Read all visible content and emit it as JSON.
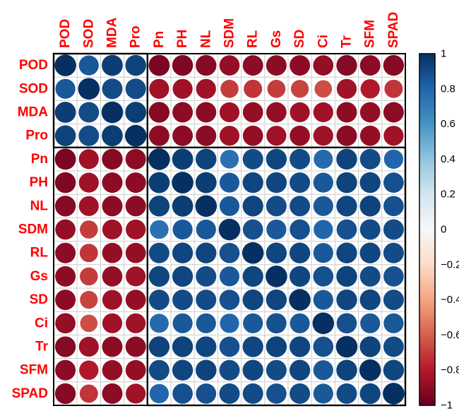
{
  "chart_data": {
    "type": "heatmap",
    "subtype": "correlation-matrix-circles",
    "title": "",
    "variables": [
      "POD",
      "SOD",
      "MDA",
      "Pro",
      "Pn",
      "PH",
      "NL",
      "SDM",
      "RL",
      "Gs",
      "SD",
      "Ci",
      "Tr",
      "SFM",
      "SPAD"
    ],
    "matrix": [
      [
        1.0,
        0.85,
        0.95,
        0.93,
        -0.95,
        -0.93,
        -0.92,
        -0.88,
        -0.9,
        -0.9,
        -0.9,
        -0.88,
        -0.92,
        -0.9,
        -0.92
      ],
      [
        0.85,
        1.0,
        0.9,
        0.9,
        -0.85,
        -0.85,
        -0.85,
        -0.7,
        -0.72,
        -0.7,
        -0.68,
        -0.65,
        -0.85,
        -0.8,
        -0.72
      ],
      [
        0.95,
        0.9,
        1.0,
        0.95,
        -0.92,
        -0.9,
        -0.9,
        -0.85,
        -0.88,
        -0.88,
        -0.85,
        -0.85,
        -0.9,
        -0.88,
        -0.9
      ],
      [
        0.93,
        0.9,
        0.95,
        1.0,
        -0.9,
        -0.9,
        -0.9,
        -0.85,
        -0.88,
        -0.85,
        -0.88,
        -0.85,
        -0.9,
        -0.88,
        -0.85
      ],
      [
        -0.95,
        -0.85,
        -0.92,
        -0.9,
        1.0,
        0.95,
        0.93,
        0.75,
        0.9,
        0.92,
        0.9,
        0.78,
        0.93,
        0.9,
        0.8
      ],
      [
        -0.93,
        -0.85,
        -0.9,
        -0.9,
        0.95,
        1.0,
        0.95,
        0.85,
        0.92,
        0.92,
        0.9,
        0.85,
        0.93,
        0.92,
        0.88
      ],
      [
        -0.92,
        -0.85,
        -0.9,
        -0.9,
        0.93,
        0.95,
        1.0,
        0.85,
        0.92,
        0.9,
        0.9,
        0.85,
        0.92,
        0.93,
        0.88
      ],
      [
        -0.88,
        -0.7,
        -0.85,
        -0.85,
        0.75,
        0.85,
        0.85,
        1.0,
        0.88,
        0.85,
        0.88,
        0.8,
        0.88,
        0.9,
        0.9
      ],
      [
        -0.9,
        -0.72,
        -0.88,
        -0.88,
        0.9,
        0.92,
        0.92,
        0.88,
        1.0,
        0.92,
        0.92,
        0.85,
        0.92,
        0.92,
        0.9
      ],
      [
        -0.9,
        -0.7,
        -0.88,
        -0.85,
        0.92,
        0.92,
        0.9,
        0.85,
        0.92,
        1.0,
        0.92,
        0.88,
        0.93,
        0.9,
        0.88
      ],
      [
        -0.9,
        -0.68,
        -0.85,
        -0.88,
        0.9,
        0.9,
        0.9,
        0.88,
        0.92,
        0.92,
        1.0,
        0.85,
        0.92,
        0.92,
        0.9
      ],
      [
        -0.88,
        -0.65,
        -0.85,
        -0.85,
        0.78,
        0.85,
        0.85,
        0.8,
        0.85,
        0.88,
        0.85,
        1.0,
        0.88,
        0.85,
        0.85
      ],
      [
        -0.92,
        -0.85,
        -0.9,
        -0.9,
        0.93,
        0.93,
        0.92,
        0.88,
        0.92,
        0.93,
        0.92,
        0.88,
        1.0,
        0.93,
        0.9
      ],
      [
        -0.9,
        -0.8,
        -0.88,
        -0.88,
        0.9,
        0.92,
        0.93,
        0.9,
        0.92,
        0.9,
        0.92,
        0.85,
        0.93,
        1.0,
        0.92
      ],
      [
        -0.92,
        -0.72,
        -0.9,
        -0.85,
        0.8,
        0.88,
        0.88,
        0.9,
        0.9,
        0.88,
        0.9,
        0.85,
        0.9,
        0.92,
        1.0
      ]
    ],
    "value_range": [
      -1,
      1
    ],
    "palette_blue_to_red": [
      "#053061",
      "#2166AC",
      "#4393C3",
      "#92C5DE",
      "#D1E5F0",
      "#F7F7F7",
      "#FDDBC7",
      "#F4A582",
      "#D6604D",
      "#B2182B",
      "#67001F"
    ],
    "label_color": "#ff0000",
    "grid_color": "#cccccc",
    "colorbar": {
      "position": "right",
      "max_label_top": "1",
      "min_label_bottom": "-1",
      "ticks": [
        1,
        0.8,
        0.6,
        0.4,
        0.2,
        0,
        -0.2,
        -0.4,
        -0.6,
        -0.8,
        -1
      ],
      "tick_labels": [
        "1",
        "0.8",
        "0.6",
        "0.4",
        "0.2",
        "0",
        "−0.2",
        "−0.4",
        "−0.6",
        "−0.8",
        "−1"
      ]
    },
    "block_rects": [
      {
        "start": 0,
        "size": 4
      },
      {
        "start": 4,
        "size": 11
      }
    ],
    "grid": true,
    "legend_position": "right-colorbar"
  }
}
